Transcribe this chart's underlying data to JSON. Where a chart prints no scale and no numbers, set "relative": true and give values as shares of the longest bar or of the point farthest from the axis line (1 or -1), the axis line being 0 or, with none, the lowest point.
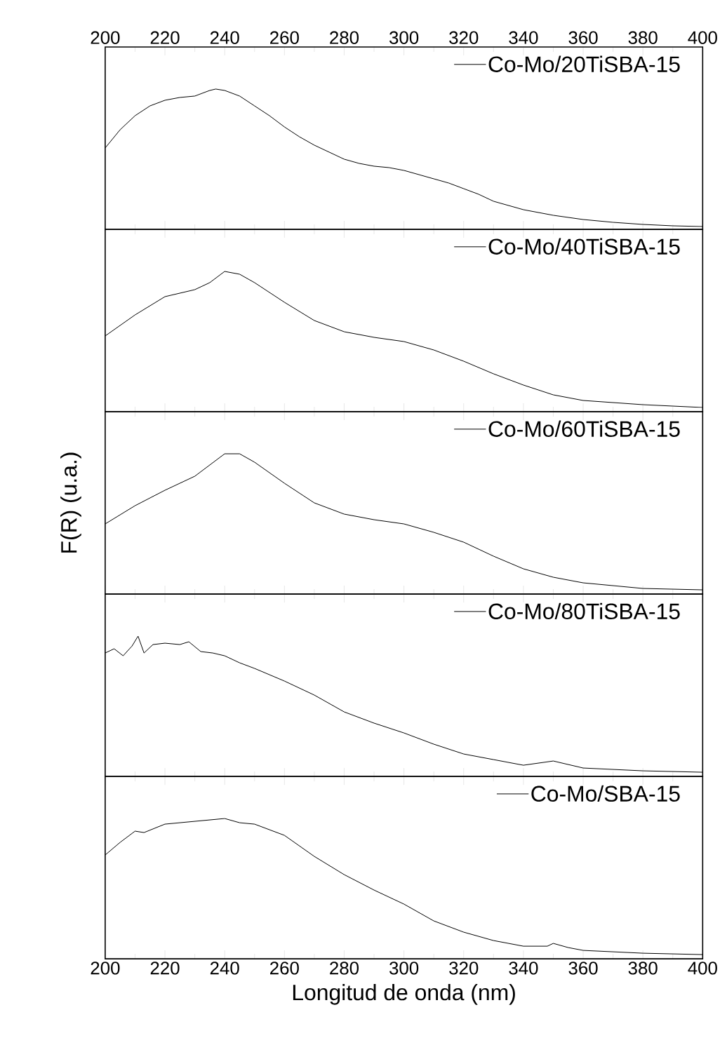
{
  "chart_data": [
    {
      "type": "line",
      "relative": true,
      "xlim": [
        200,
        400
      ],
      "xticks": [
        200,
        220,
        240,
        260,
        280,
        300,
        320,
        340,
        360,
        380,
        400
      ],
      "tick_labels": "x",
      "legend": "top right",
      "x": [
        200,
        205,
        210,
        215,
        220,
        225,
        230,
        235,
        237,
        240,
        245,
        250,
        255,
        260,
        265,
        270,
        275,
        280,
        285,
        290,
        295,
        300,
        305,
        310,
        315,
        320,
        325,
        330,
        335,
        340,
        350,
        360,
        370,
        380,
        390,
        400
      ],
      "series": [
        {
          "name": "Co-Mo/20TiSBA-15",
          "color": "#000000",
          "values": [
            0.58,
            0.71,
            0.81,
            0.88,
            0.92,
            0.94,
            0.95,
            0.99,
            1,
            0.99,
            0.95,
            0.88,
            0.81,
            0.73,
            0.66,
            0.6,
            0.55,
            0.5,
            0.47,
            0.45,
            0.44,
            0.42,
            0.39,
            0.36,
            0.33,
            0.29,
            0.25,
            0.2,
            0.17,
            0.14,
            0.1,
            0.07,
            0.05,
            0.035,
            0.025,
            0.02
          ]
        }
      ]
    },
    {
      "type": "line",
      "relative": true,
      "xlim": [
        200,
        400
      ],
      "xticks": [
        200,
        220,
        240,
        260,
        280,
        300,
        320,
        340,
        360,
        380,
        400
      ],
      "tick_labels": false,
      "legend": "top right",
      "x": [
        200,
        210,
        220,
        230,
        235,
        240,
        245,
        250,
        260,
        270,
        280,
        290,
        300,
        310,
        320,
        330,
        340,
        350,
        360,
        380,
        400
      ],
      "series": [
        {
          "name": "Co-Mo/40TiSBA-15",
          "color": "#000000",
          "values": [
            0.54,
            0.69,
            0.82,
            0.87,
            0.92,
            1,
            0.98,
            0.92,
            0.78,
            0.65,
            0.57,
            0.53,
            0.5,
            0.44,
            0.36,
            0.27,
            0.19,
            0.12,
            0.08,
            0.05,
            0.03
          ]
        }
      ]
    },
    {
      "type": "line",
      "relative": true,
      "xlim": [
        200,
        400
      ],
      "xticks": [
        200,
        220,
        240,
        260,
        280,
        300,
        320,
        340,
        360,
        380,
        400
      ],
      "tick_labels": false,
      "legend": "top right",
      "ylabel": "F(R) (u.a.)",
      "x": [
        200,
        210,
        220,
        230,
        240,
        245,
        250,
        260,
        270,
        280,
        290,
        300,
        310,
        320,
        330,
        340,
        350,
        360,
        380,
        400
      ],
      "series": [
        {
          "name": "Co-Mo/60TiSBA-15",
          "color": "#000000",
          "values": [
            0.5,
            0.63,
            0.74,
            0.84,
            1,
            1,
            0.94,
            0.79,
            0.65,
            0.57,
            0.53,
            0.5,
            0.44,
            0.37,
            0.27,
            0.18,
            0.12,
            0.08,
            0.04,
            0.03
          ]
        }
      ]
    },
    {
      "type": "line",
      "relative": true,
      "xlim": [
        200,
        400
      ],
      "xticks": [
        200,
        220,
        240,
        260,
        280,
        300,
        320,
        340,
        360,
        380,
        400
      ],
      "tick_labels": false,
      "legend": "top right",
      "x": [
        200,
        203,
        206,
        209,
        211,
        213,
        216,
        220,
        225,
        228,
        232,
        236,
        240,
        245,
        250,
        260,
        270,
        280,
        290,
        300,
        310,
        320,
        330,
        340,
        350,
        360,
        380,
        400
      ],
      "series": [
        {
          "name": "Co-Mo/80TiSBA-15",
          "color": "#000000",
          "values": [
            0.88,
            0.91,
            0.86,
            0.93,
            1,
            0.88,
            0.94,
            0.95,
            0.94,
            0.96,
            0.89,
            0.88,
            0.86,
            0.81,
            0.77,
            0.68,
            0.58,
            0.46,
            0.38,
            0.31,
            0.23,
            0.16,
            0.12,
            0.08,
            0.11,
            0.06,
            0.04,
            0.03
          ]
        }
      ]
    },
    {
      "type": "line",
      "relative": true,
      "xlim": [
        200,
        400
      ],
      "xticks": [
        200,
        220,
        240,
        260,
        280,
        300,
        320,
        340,
        360,
        380,
        400
      ],
      "tick_labels": "x",
      "legend": "top right",
      "xlabel": "Longitud de onda (nm)",
      "x": [
        200,
        205,
        210,
        213,
        220,
        230,
        240,
        245,
        250,
        260,
        270,
        280,
        290,
        300,
        310,
        320,
        330,
        340,
        348,
        350,
        355,
        360,
        380,
        400
      ],
      "series": [
        {
          "name": "Co-Mo/SBA-15",
          "color": "#000000",
          "values": [
            0.74,
            0.83,
            0.91,
            0.9,
            0.96,
            0.98,
            1,
            0.97,
            0.96,
            0.88,
            0.73,
            0.6,
            0.49,
            0.39,
            0.27,
            0.19,
            0.13,
            0.09,
            0.09,
            0.11,
            0.08,
            0.06,
            0.04,
            0.03
          ]
        }
      ]
    }
  ]
}
